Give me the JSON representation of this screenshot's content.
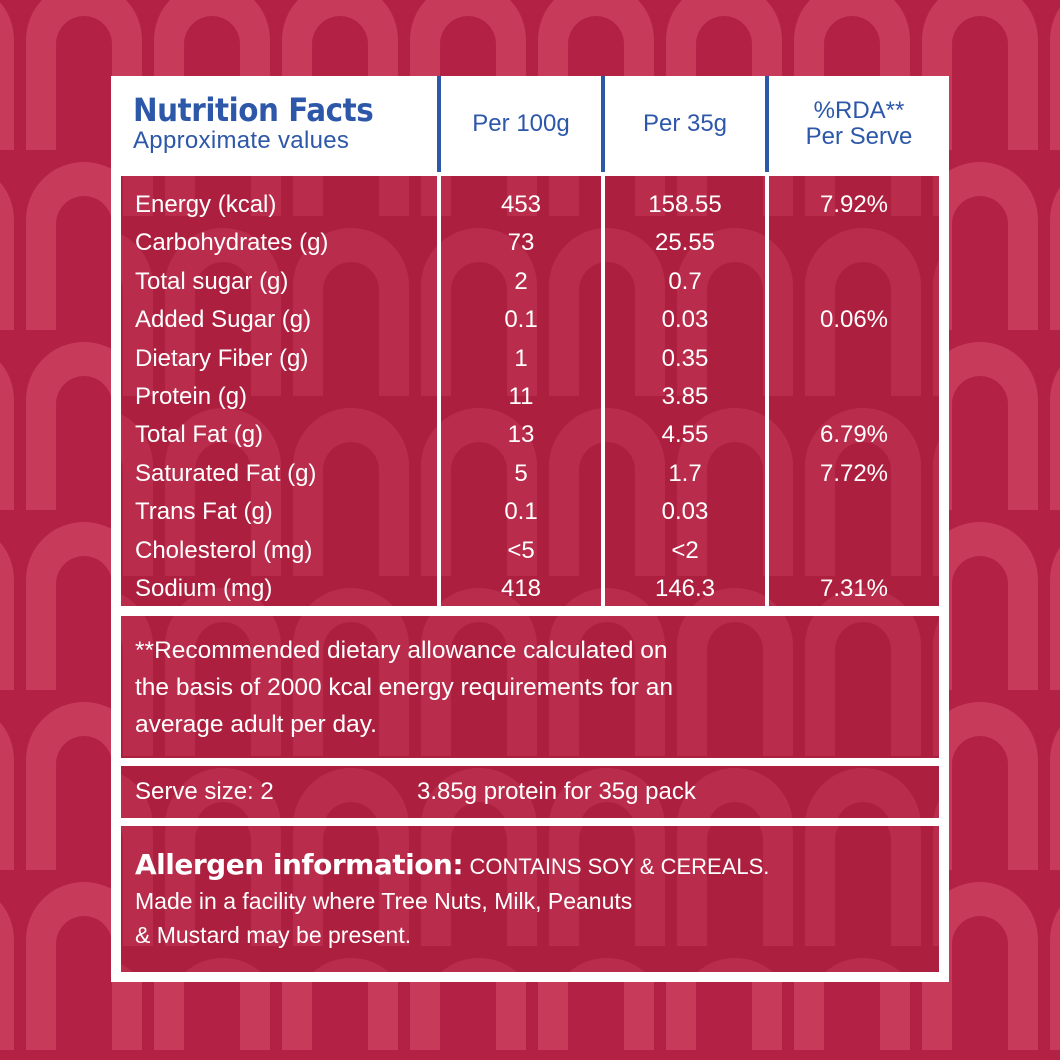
{
  "header": {
    "title": "Nutrition Facts",
    "subtitle": "Approximate values",
    "columns": [
      "Per 100g",
      "Per 35g"
    ],
    "rda_header_line1": "%RDA**",
    "rda_header_line2": "Per Serve"
  },
  "nutrients": [
    {
      "name": "Energy (kcal)",
      "per100": "453",
      "per35": "158.55",
      "rda": "7.92%"
    },
    {
      "name": "Carbohydrates (g)",
      "per100": "73",
      "per35": "25.55",
      "rda": ""
    },
    {
      "name": "Total sugar (g)",
      "per100": "2",
      "per35": "0.7",
      "rda": ""
    },
    {
      "name": "Added Sugar (g)",
      "per100": "0.1",
      "per35": "0.03",
      "rda": "0.06%"
    },
    {
      "name": "Dietary Fiber (g)",
      "per100": "1",
      "per35": "0.35",
      "rda": ""
    },
    {
      "name": "Protein (g)",
      "per100": "11",
      "per35": "3.85",
      "rda": ""
    },
    {
      "name": "Total Fat (g)",
      "per100": "13",
      "per35": "4.55",
      "rda": "6.79%"
    },
    {
      "name": "Saturated Fat (g)",
      "per100": "5",
      "per35": "1.7",
      "rda": "7.72%"
    },
    {
      "name": "Trans Fat (g)",
      "per100": "0.1",
      "per35": "0.03",
      "rda": ""
    },
    {
      "name": "Cholesterol (mg)",
      "per100": "<5",
      "per35": "<2",
      "rda": ""
    },
    {
      "name": "Sodium (mg)",
      "per100": "418",
      "per35": "146.3",
      "rda": "7.31%"
    }
  ],
  "footnote": {
    "line1": "**Recommended dietary allowance calculated on",
    "line2": "the basis of 2000 kcal energy requirements for an",
    "line3": "average adult per day."
  },
  "serve": {
    "size": "Serve size: 2",
    "protein": "3.85g protein for 35g pack"
  },
  "allergen": {
    "title": "Allergen information:",
    "contains": "CONTAINS SOY & CEREALS.",
    "line2": "Made in a facility where Tree Nuts, Milk, Peanuts",
    "line3": "& Mustard may be present."
  },
  "colors": {
    "background": "#b32244",
    "panel": "#ad1f3f",
    "pattern_light": "#c83a5a",
    "frame": "#ffffff",
    "header_text": "#2d57a8"
  }
}
